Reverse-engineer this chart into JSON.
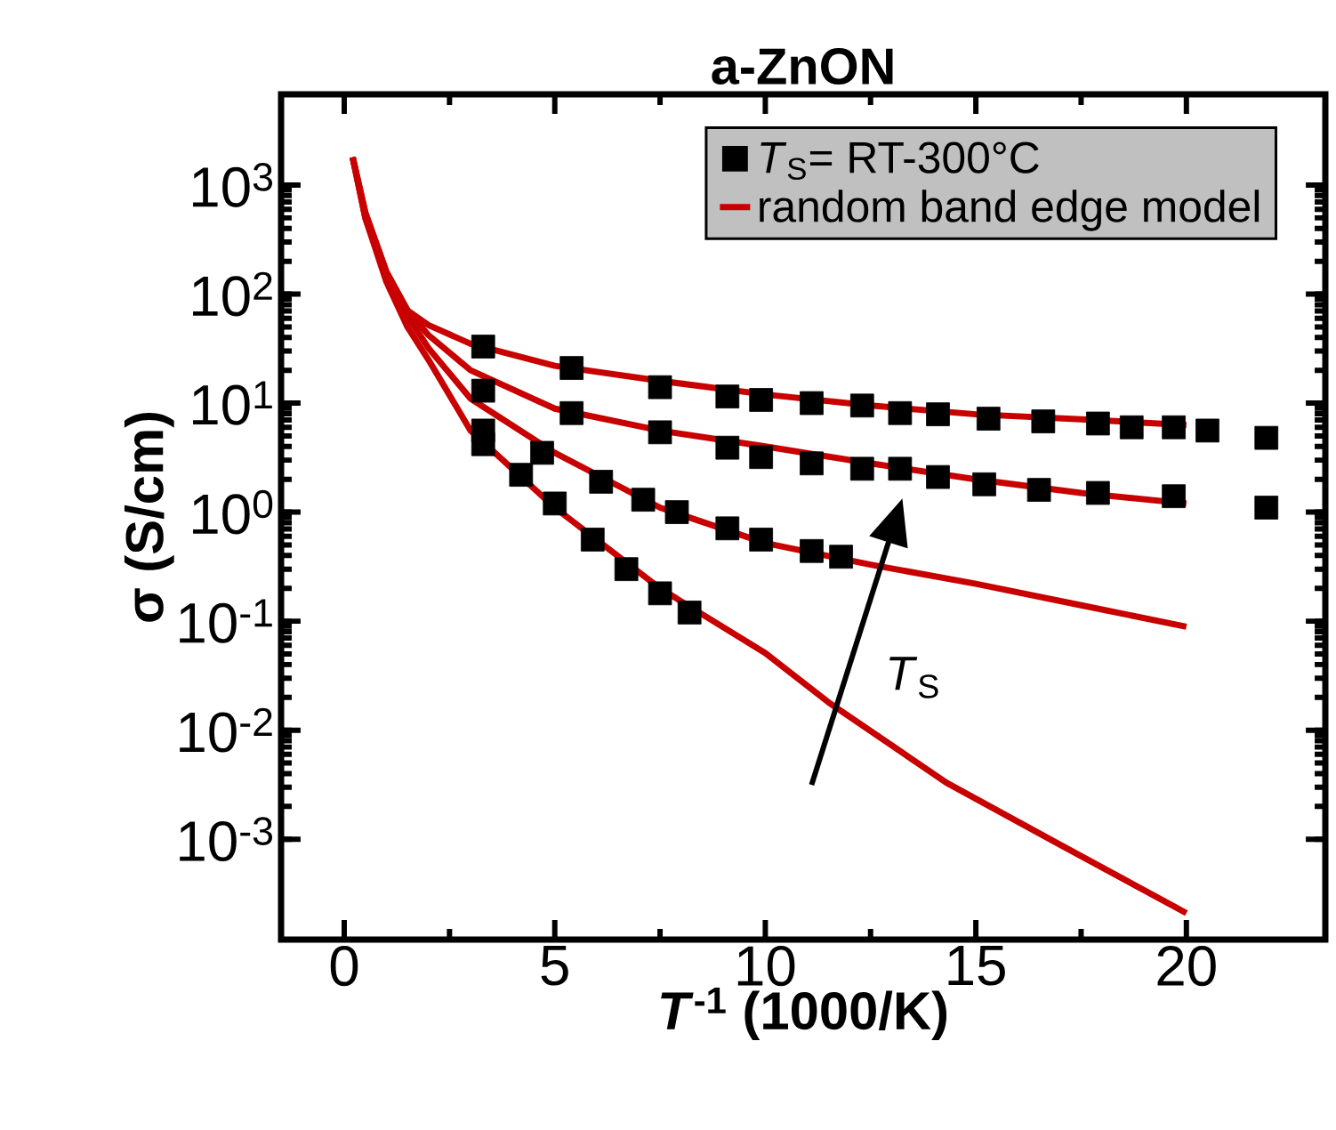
{
  "chart_data": {
    "type": "line",
    "title": "a-ZnON",
    "xlabel": "*T*$^{-1}$ (1000/K)",
    "ylabel": "σ (S/cm)",
    "log": "y",
    "legend": "top right",
    "xlim": [
      -1.5,
      23.3
    ],
    "xticks": [
      0,
      5,
      10,
      15,
      20
    ],
    "ylim": [
      0.00012,
      6800
    ],
    "yticks": [
      {
        "value": 0.001,
        "label": "10$^{-3}$"
      },
      {
        "value": 0.01,
        "label": "10$^{-2}$"
      },
      {
        "value": 0.1,
        "label": "10$^{-1}$"
      },
      {
        "value": 1,
        "label": "10$^{0}$"
      },
      {
        "value": 10,
        "label": "10$^{1}$"
      },
      {
        "value": 100,
        "label": "10$^{2}$"
      },
      {
        "value": 1000,
        "label": "10$^{3}$"
      }
    ],
    "annotations": [
      "*T*$_{S}$"
    ],
    "series": [
      {
        "name": "*T*$_{S}$= RT-300°C",
        "type": "scatter",
        "marker": "square",
        "color": "#000000",
        "x": [
          3.3,
          5.4,
          7.5,
          9.1,
          9.9,
          11.1,
          12.3,
          13.2,
          14.1,
          15.3,
          16.6,
          17.9,
          18.7,
          19.7,
          20.5,
          21.9
        ],
        "values": [
          33,
          21,
          14,
          11.5,
          10.7,
          10,
          9.5,
          8.1,
          7.9,
          7.2,
          6.8,
          6.5,
          6,
          6,
          5.6,
          4.8
        ]
      },
      {
        "type": "scatter",
        "marker": "square",
        "color": "#000000",
        "x": [
          3.3,
          5.4,
          7.5,
          9.1,
          9.9,
          11.1,
          12.3,
          13.2,
          14.1,
          15.2,
          16.5,
          17.9,
          19.7,
          21.9
        ],
        "values": [
          13,
          8.1,
          5.4,
          3.9,
          3.2,
          2.8,
          2.5,
          2.5,
          2.1,
          1.8,
          1.6,
          1.5,
          1.4,
          1.1
        ]
      },
      {
        "type": "scatter",
        "marker": "square",
        "color": "#000000",
        "x": [
          3.3,
          4.7,
          6.1,
          7.1,
          7.9,
          9.1,
          9.9,
          11.1,
          11.8
        ],
        "values": [
          5.6,
          3.5,
          1.9,
          1.3,
          1.0,
          0.71,
          0.56,
          0.44,
          0.39
        ]
      },
      {
        "type": "scatter",
        "marker": "square",
        "color": "#000000",
        "x": [
          3.3,
          4.2,
          5.0,
          5.9,
          6.7,
          7.5,
          8.2
        ],
        "values": [
          4.2,
          2.2,
          1.2,
          0.56,
          0.3,
          0.18,
          0.12
        ]
      },
      {
        "name": "random band edge model",
        "marker": "none",
        "color": "#c80000",
        "x": [
          0.2,
          0.5,
          1,
          1.5,
          2,
          3,
          5,
          7.5,
          10,
          12.5,
          15,
          17.5,
          20
        ],
        "values": [
          1800,
          560,
          160,
          71,
          52,
          35,
          22,
          16,
          12,
          9.5,
          7.9,
          7.1,
          6.3
        ]
      },
      {
        "marker": "none",
        "color": "#c80000",
        "x": [
          0.2,
          0.5,
          1,
          1.5,
          2,
          3,
          5,
          7.5,
          10,
          12.5,
          15,
          17.5,
          20
        ],
        "values": [
          1800,
          560,
          160,
          71,
          42,
          20,
          8.9,
          5.6,
          4,
          2.8,
          2,
          1.5,
          1.2
        ]
      },
      {
        "marker": "none",
        "color": "#c80000",
        "x": [
          0.2,
          0.5,
          1,
          1.5,
          2,
          3,
          5,
          7.5,
          10,
          12.5,
          15,
          17.5,
          20
        ],
        "values": [
          1800,
          500,
          140,
          63,
          32,
          11,
          3.5,
          1.1,
          0.52,
          0.33,
          0.22,
          0.14,
          0.089
        ]
      },
      {
        "marker": "none",
        "color": "#c80000",
        "x": [
          0.2,
          0.5,
          1,
          1.5,
          2,
          3,
          5,
          7.5,
          10,
          11.5,
          14.3,
          17,
          20
        ],
        "values": [
          1800,
          500,
          130,
          50,
          25,
          5.6,
          1.1,
          0.2,
          0.051,
          0.018,
          0.0033,
          0.00089,
          0.00021
        ]
      }
    ]
  }
}
